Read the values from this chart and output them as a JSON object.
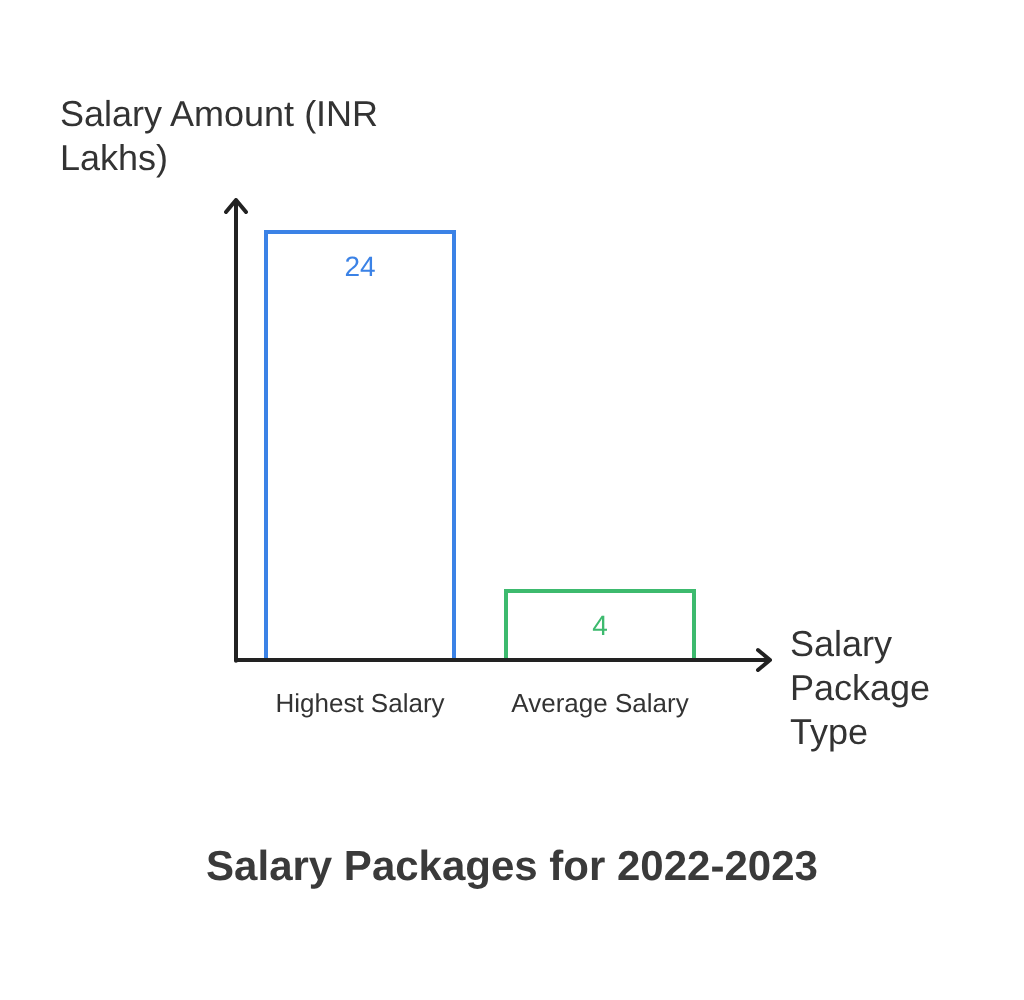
{
  "chart_data": {
    "type": "bar",
    "title": "Salary Packages for 2022-2023",
    "xlabel": "Salary Package Type",
    "ylabel": "Salary Amount (INR Lakhs)",
    "categories": [
      "Highest Salary",
      "Average Salary"
    ],
    "values": [
      24,
      4
    ],
    "colors": [
      "#3b82e6",
      "#3dba6e"
    ],
    "data_labels": true,
    "grid": false,
    "legend": false
  }
}
